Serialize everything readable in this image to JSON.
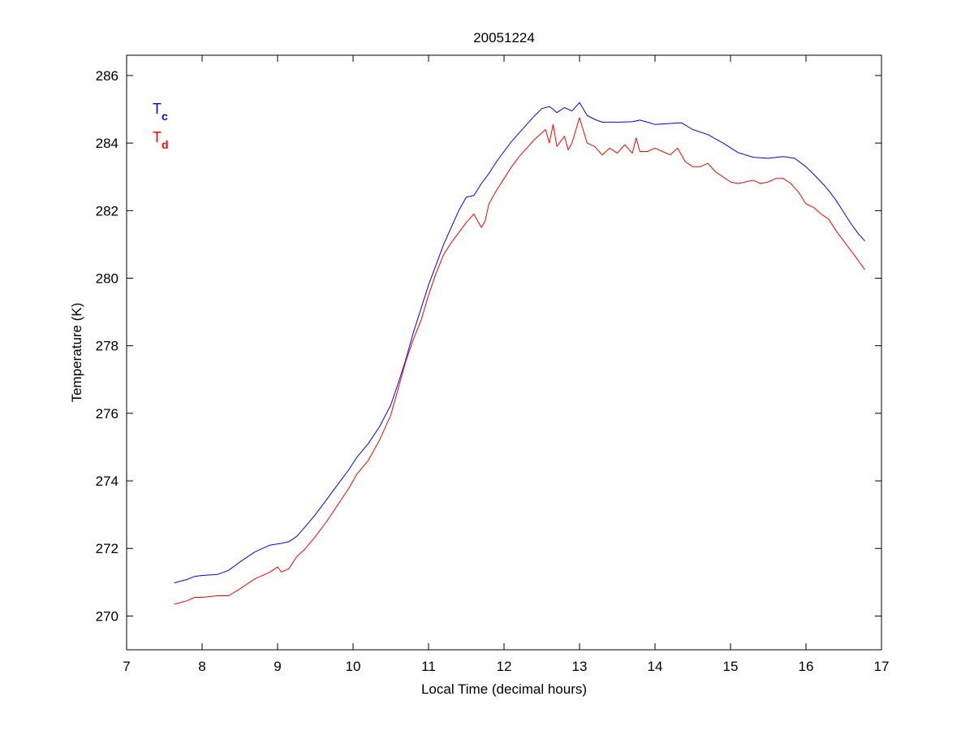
{
  "chart_data": {
    "type": "line",
    "title": "20051224",
    "xlabel": "Local Time (decimal hours)",
    "ylabel": "Temperature (K)",
    "xlim": [
      7,
      17
    ],
    "ylim": [
      269,
      286.6
    ],
    "xticks": [
      7,
      8,
      9,
      10,
      11,
      12,
      13,
      14,
      15,
      16,
      17
    ],
    "yticks": [
      270,
      272,
      274,
      276,
      278,
      280,
      282,
      284,
      286
    ],
    "grid": false,
    "legend_placement": "top-left",
    "series": [
      {
        "name": "Tc",
        "legend_main": "T",
        "legend_sub": "c",
        "color": "#0000ff",
        "x": [
          7.63,
          7.8,
          7.9,
          8.0,
          8.2,
          8.35,
          8.5,
          8.7,
          8.9,
          9.05,
          9.15,
          9.25,
          9.35,
          9.5,
          9.65,
          9.8,
          9.95,
          10.05,
          10.2,
          10.35,
          10.5,
          10.6,
          10.7,
          10.8,
          10.9,
          11.0,
          11.1,
          11.2,
          11.3,
          11.4,
          11.5,
          11.6,
          11.7,
          11.8,
          11.9,
          12.0,
          12.1,
          12.2,
          12.3,
          12.4,
          12.5,
          12.6,
          12.65,
          12.7,
          12.8,
          12.9,
          13.0,
          13.1,
          13.2,
          13.3,
          13.5,
          13.7,
          13.8,
          13.9,
          14.0,
          14.2,
          14.35,
          14.5,
          14.7,
          14.9,
          15.1,
          15.3,
          15.5,
          15.7,
          15.85,
          16.0,
          16.1,
          16.2,
          16.3,
          16.4,
          16.5,
          16.6,
          16.7,
          16.78
        ],
        "y": [
          270.98,
          271.08,
          271.17,
          271.2,
          271.23,
          271.35,
          271.6,
          271.9,
          272.1,
          272.15,
          272.2,
          272.35,
          272.6,
          273.0,
          273.45,
          273.9,
          274.35,
          274.7,
          275.1,
          275.6,
          276.25,
          276.9,
          277.6,
          278.4,
          279.1,
          279.8,
          280.4,
          281.0,
          281.5,
          282.0,
          282.4,
          282.45,
          282.8,
          283.1,
          283.45,
          283.75,
          284.05,
          284.3,
          284.55,
          284.8,
          285.02,
          285.08,
          285.0,
          284.9,
          285.05,
          284.95,
          285.2,
          284.82,
          284.7,
          284.62,
          284.62,
          284.63,
          284.68,
          284.62,
          284.55,
          284.58,
          284.6,
          284.4,
          284.25,
          284.0,
          283.72,
          283.58,
          283.55,
          283.6,
          283.55,
          283.3,
          283.08,
          282.85,
          282.6,
          282.3,
          281.95,
          281.6,
          281.3,
          281.1
        ]
      },
      {
        "name": "Td",
        "legend_main": "T",
        "legend_sub": "d",
        "color": "#ff0000",
        "x": [
          7.63,
          7.8,
          7.9,
          8.0,
          8.2,
          8.35,
          8.5,
          8.7,
          8.9,
          9.0,
          9.05,
          9.15,
          9.25,
          9.35,
          9.5,
          9.65,
          9.8,
          9.95,
          10.05,
          10.2,
          10.35,
          10.5,
          10.6,
          10.7,
          10.8,
          10.9,
          11.0,
          11.1,
          11.2,
          11.3,
          11.4,
          11.5,
          11.6,
          11.7,
          11.75,
          11.8,
          11.9,
          12.0,
          12.1,
          12.2,
          12.3,
          12.4,
          12.5,
          12.55,
          12.6,
          12.65,
          12.7,
          12.8,
          12.85,
          12.9,
          13.0,
          13.1,
          13.2,
          13.3,
          13.4,
          13.5,
          13.6,
          13.7,
          13.75,
          13.8,
          13.9,
          14.0,
          14.1,
          14.2,
          14.3,
          14.4,
          14.5,
          14.6,
          14.7,
          14.8,
          14.9,
          15.0,
          15.1,
          15.2,
          15.3,
          15.4,
          15.5,
          15.6,
          15.7,
          15.8,
          15.9,
          16.0,
          16.1,
          16.2,
          16.3,
          16.4,
          16.5,
          16.6,
          16.7,
          16.78
        ],
        "y": [
          270.35,
          270.45,
          270.55,
          270.55,
          270.6,
          270.6,
          270.8,
          271.1,
          271.3,
          271.45,
          271.3,
          271.4,
          271.75,
          271.95,
          272.35,
          272.8,
          273.3,
          273.8,
          274.2,
          274.6,
          275.2,
          275.95,
          276.75,
          277.55,
          278.2,
          278.75,
          279.5,
          280.15,
          280.7,
          281.05,
          281.35,
          281.65,
          281.9,
          281.5,
          281.7,
          282.2,
          282.6,
          282.95,
          283.3,
          283.6,
          283.85,
          284.1,
          284.3,
          284.4,
          284.0,
          284.55,
          283.9,
          284.2,
          283.8,
          284.0,
          284.75,
          284.0,
          283.9,
          283.65,
          283.85,
          283.7,
          283.95,
          283.7,
          284.15,
          283.75,
          283.75,
          283.85,
          283.75,
          283.65,
          283.85,
          283.45,
          283.3,
          283.3,
          283.4,
          283.15,
          283.0,
          282.85,
          282.8,
          282.85,
          282.9,
          282.8,
          282.85,
          282.95,
          282.95,
          282.8,
          282.55,
          282.2,
          282.1,
          281.9,
          281.75,
          281.4,
          281.1,
          280.8,
          280.5,
          280.25
        ]
      }
    ]
  }
}
